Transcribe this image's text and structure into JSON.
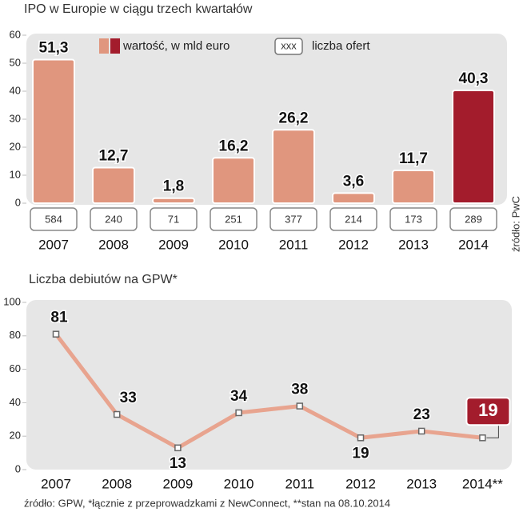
{
  "chart_data": [
    {
      "type": "bar",
      "title": "IPO w Europie w ciągu trzech kwartałów",
      "categories": [
        "2007",
        "2008",
        "2009",
        "2010",
        "2011",
        "2012",
        "2013",
        "2014"
      ],
      "series": [
        {
          "name": "wartość, w mld euro",
          "color": "#e0967e",
          "colors": [
            "#e0967e",
            "#e0967e",
            "#e0967e",
            "#e0967e",
            "#e0967e",
            "#e0967e",
            "#e0967e",
            "#a31c2c"
          ],
          "values": [
            51.3,
            12.7,
            1.8,
            16.2,
            26.2,
            3.6,
            11.7,
            40.3
          ],
          "value_labels": [
            "51,3",
            "12,7",
            "1,8",
            "16,2",
            "26,2",
            "3,6",
            "11,7",
            "40,3"
          ]
        }
      ],
      "offers": {
        "name": "liczba ofert",
        "legend_sample": "xxx",
        "values": [
          584,
          240,
          71,
          251,
          377,
          214,
          173,
          289
        ]
      },
      "ylim": [
        0,
        60
      ],
      "yticks": [
        0,
        10,
        20,
        30,
        40,
        50,
        60
      ],
      "source": "źródło: PwC"
    },
    {
      "type": "line",
      "title": "Liczba debiutów na GPW*",
      "categories": [
        "2007",
        "2008",
        "2009",
        "2010",
        "2011",
        "2012",
        "2013",
        "2014**"
      ],
      "series": [
        {
          "name": "Liczba debiutów",
          "color": "#e8a48f",
          "highlight_color": "#a31c2c",
          "values": [
            81,
            33,
            13,
            34,
            38,
            19,
            23,
            19
          ]
        }
      ],
      "ylim": [
        0,
        100
      ],
      "yticks": [
        0,
        20,
        40,
        60,
        80,
        100
      ],
      "source": "źródło: GPW, *łącznie z przeprowadzkami z NewConnect, **stan na 08.10.2014"
    }
  ]
}
